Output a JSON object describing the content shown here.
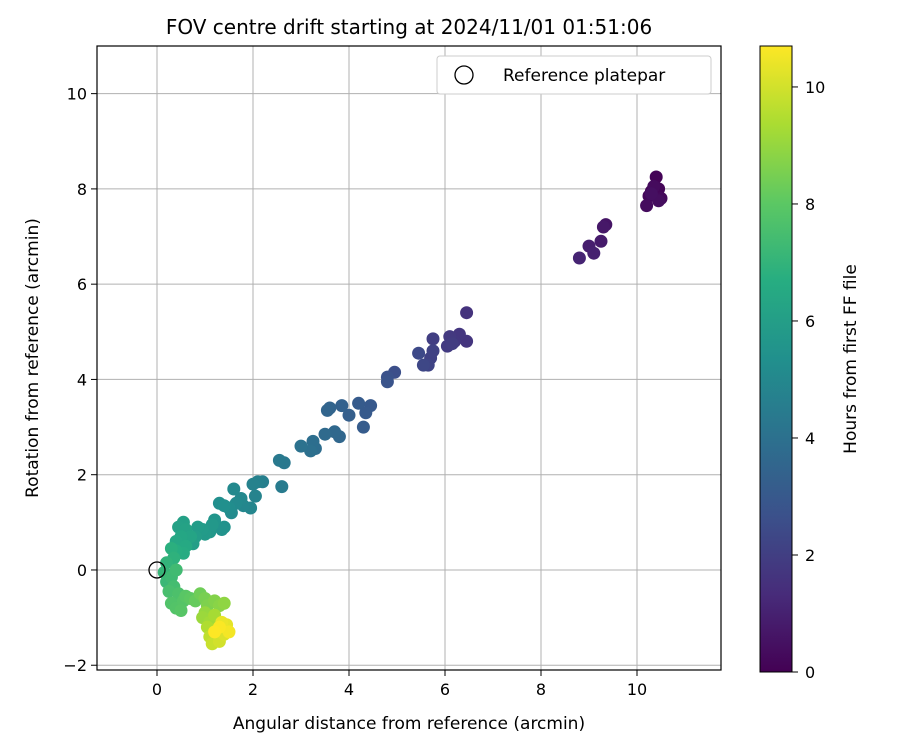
{
  "chart_data": {
    "type": "scatter",
    "title": "FOV centre drift starting at 2024/11/01 01:51:06",
    "xlabel": "Angular distance from reference (arcmin)",
    "ylabel": "Rotation from reference (arcmin)",
    "xlim": [
      -1.25,
      11.75
    ],
    "ylim": [
      -2.1,
      11.0
    ],
    "xticks": [
      0,
      2,
      4,
      6,
      8,
      10
    ],
    "yticks": [
      -2,
      0,
      2,
      4,
      6,
      8,
      10
    ],
    "grid": true,
    "legend": {
      "placement": "top-right",
      "entries": [
        "Reference platepar"
      ]
    },
    "reference_point": {
      "name": "Reference platepar",
      "x": 0.0,
      "y": 0.0
    },
    "colorbar": {
      "label": "Hours from first FF file",
      "range": [
        0,
        10.7
      ],
      "ticks": [
        0,
        2,
        4,
        6,
        8,
        10
      ],
      "colormap": "viridis"
    },
    "points": [
      {
        "x": 10.3,
        "y": 7.95,
        "c": 0.05
      },
      {
        "x": 10.4,
        "y": 8.25,
        "c": 0.1
      },
      {
        "x": 10.45,
        "y": 8.0,
        "c": 0.15
      },
      {
        "x": 10.25,
        "y": 7.85,
        "c": 0.2
      },
      {
        "x": 10.5,
        "y": 7.8,
        "c": 0.25
      },
      {
        "x": 10.35,
        "y": 8.05,
        "c": 0.3
      },
      {
        "x": 10.2,
        "y": 7.65,
        "c": 0.35
      },
      {
        "x": 10.45,
        "y": 7.75,
        "c": 0.4
      },
      {
        "x": 10.3,
        "y": 7.9,
        "c": 0.45
      },
      {
        "x": 9.35,
        "y": 7.25,
        "c": 0.6
      },
      {
        "x": 9.3,
        "y": 7.2,
        "c": 0.7
      },
      {
        "x": 9.25,
        "y": 6.9,
        "c": 0.8
      },
      {
        "x": 9.0,
        "y": 6.8,
        "c": 0.9
      },
      {
        "x": 9.1,
        "y": 6.65,
        "c": 1.0
      },
      {
        "x": 8.8,
        "y": 6.55,
        "c": 1.1
      },
      {
        "x": 6.45,
        "y": 5.4,
        "c": 1.6
      },
      {
        "x": 6.45,
        "y": 4.8,
        "c": 1.65
      },
      {
        "x": 6.3,
        "y": 4.95,
        "c": 1.7
      },
      {
        "x": 6.2,
        "y": 4.8,
        "c": 1.75
      },
      {
        "x": 6.1,
        "y": 4.9,
        "c": 1.8
      },
      {
        "x": 6.05,
        "y": 4.7,
        "c": 1.85
      },
      {
        "x": 6.15,
        "y": 4.75,
        "c": 1.9
      },
      {
        "x": 5.75,
        "y": 4.85,
        "c": 2.0
      },
      {
        "x": 5.7,
        "y": 4.45,
        "c": 2.1
      },
      {
        "x": 5.75,
        "y": 4.6,
        "c": 2.15
      },
      {
        "x": 5.65,
        "y": 4.3,
        "c": 2.2
      },
      {
        "x": 5.55,
        "y": 4.3,
        "c": 2.3
      },
      {
        "x": 5.45,
        "y": 4.55,
        "c": 2.4
      },
      {
        "x": 4.95,
        "y": 4.15,
        "c": 2.6
      },
      {
        "x": 4.8,
        "y": 4.05,
        "c": 2.7
      },
      {
        "x": 4.8,
        "y": 3.95,
        "c": 2.8
      },
      {
        "x": 4.45,
        "y": 3.45,
        "c": 3.0
      },
      {
        "x": 4.35,
        "y": 3.3,
        "c": 3.05
      },
      {
        "x": 4.2,
        "y": 3.5,
        "c": 3.1
      },
      {
        "x": 4.3,
        "y": 3.0,
        "c": 3.15
      },
      {
        "x": 4.0,
        "y": 3.25,
        "c": 3.25
      },
      {
        "x": 3.85,
        "y": 3.45,
        "c": 3.35
      },
      {
        "x": 3.6,
        "y": 3.4,
        "c": 3.45
      },
      {
        "x": 3.55,
        "y": 3.35,
        "c": 3.5
      },
      {
        "x": 3.8,
        "y": 2.8,
        "c": 3.6
      },
      {
        "x": 3.7,
        "y": 2.9,
        "c": 3.65
      },
      {
        "x": 3.5,
        "y": 2.85,
        "c": 3.7
      },
      {
        "x": 3.3,
        "y": 2.55,
        "c": 3.85
      },
      {
        "x": 3.25,
        "y": 2.7,
        "c": 3.9
      },
      {
        "x": 3.2,
        "y": 2.5,
        "c": 3.95
      },
      {
        "x": 3.0,
        "y": 2.6,
        "c": 4.05
      },
      {
        "x": 2.65,
        "y": 2.25,
        "c": 4.3
      },
      {
        "x": 2.55,
        "y": 2.3,
        "c": 4.35
      },
      {
        "x": 2.6,
        "y": 1.75,
        "c": 4.45
      },
      {
        "x": 2.2,
        "y": 1.85,
        "c": 4.6
      },
      {
        "x": 2.1,
        "y": 1.85,
        "c": 4.7
      },
      {
        "x": 2.0,
        "y": 1.8,
        "c": 4.75
      },
      {
        "x": 2.05,
        "y": 1.55,
        "c": 4.8
      },
      {
        "x": 1.95,
        "y": 1.3,
        "c": 4.9
      },
      {
        "x": 1.8,
        "y": 1.35,
        "c": 4.95
      },
      {
        "x": 1.75,
        "y": 1.5,
        "c": 5.0
      },
      {
        "x": 1.6,
        "y": 1.7,
        "c": 5.05
      },
      {
        "x": 1.65,
        "y": 1.4,
        "c": 5.1
      },
      {
        "x": 1.55,
        "y": 1.2,
        "c": 5.15
      },
      {
        "x": 1.5,
        "y": 1.3,
        "c": 5.2
      },
      {
        "x": 1.3,
        "y": 1.4,
        "c": 5.3
      },
      {
        "x": 1.4,
        "y": 1.35,
        "c": 5.35
      },
      {
        "x": 1.4,
        "y": 0.9,
        "c": 5.45
      },
      {
        "x": 1.35,
        "y": 0.85,
        "c": 5.5
      },
      {
        "x": 1.2,
        "y": 1.05,
        "c": 5.6
      },
      {
        "x": 1.1,
        "y": 0.8,
        "c": 5.65
      },
      {
        "x": 1.15,
        "y": 0.95,
        "c": 5.7
      },
      {
        "x": 1.0,
        "y": 0.75,
        "c": 5.8
      },
      {
        "x": 0.95,
        "y": 0.85,
        "c": 5.85
      },
      {
        "x": 0.85,
        "y": 0.9,
        "c": 5.9
      },
      {
        "x": 0.8,
        "y": 0.7,
        "c": 5.95
      },
      {
        "x": 0.75,
        "y": 0.55,
        "c": 6.0
      },
      {
        "x": 0.55,
        "y": 1.0,
        "c": 6.1
      },
      {
        "x": 0.45,
        "y": 0.9,
        "c": 6.15
      },
      {
        "x": 0.6,
        "y": 0.85,
        "c": 6.2
      },
      {
        "x": 0.7,
        "y": 0.7,
        "c": 6.25
      },
      {
        "x": 0.5,
        "y": 0.7,
        "c": 6.35
      },
      {
        "x": 0.4,
        "y": 0.6,
        "c": 6.4
      },
      {
        "x": 0.6,
        "y": 0.5,
        "c": 6.5
      },
      {
        "x": 0.55,
        "y": 0.35,
        "c": 6.6
      },
      {
        "x": 0.4,
        "y": 0.4,
        "c": 6.7
      },
      {
        "x": 0.3,
        "y": 0.45,
        "c": 6.8
      },
      {
        "x": 0.35,
        "y": 0.25,
        "c": 6.9
      },
      {
        "x": 0.2,
        "y": 0.15,
        "c": 7.0
      },
      {
        "x": 0.15,
        "y": -0.05,
        "c": 7.1
      },
      {
        "x": 0.2,
        "y": -0.25,
        "c": 7.2
      },
      {
        "x": 0.3,
        "y": -0.15,
        "c": 7.3
      },
      {
        "x": 0.4,
        "y": 0.0,
        "c": 7.35
      },
      {
        "x": 0.35,
        "y": -0.35,
        "c": 7.45
      },
      {
        "x": 0.25,
        "y": -0.45,
        "c": 7.55
      },
      {
        "x": 0.45,
        "y": -0.5,
        "c": 7.65
      },
      {
        "x": 0.3,
        "y": -0.7,
        "c": 7.75
      },
      {
        "x": 0.4,
        "y": -0.8,
        "c": 7.8
      },
      {
        "x": 0.55,
        "y": -0.65,
        "c": 7.85
      },
      {
        "x": 0.5,
        "y": -0.85,
        "c": 7.9
      },
      {
        "x": 0.6,
        "y": -0.55,
        "c": 7.95
      },
      {
        "x": 0.7,
        "y": -0.6,
        "c": 8.05
      },
      {
        "x": 0.8,
        "y": -0.65,
        "c": 8.2
      },
      {
        "x": 0.9,
        "y": -0.5,
        "c": 8.35
      },
      {
        "x": 1.0,
        "y": -0.6,
        "c": 8.5
      },
      {
        "x": 1.05,
        "y": -0.75,
        "c": 8.6
      },
      {
        "x": 1.2,
        "y": -0.65,
        "c": 8.7
      },
      {
        "x": 1.3,
        "y": -0.75,
        "c": 8.8
      },
      {
        "x": 1.4,
        "y": -0.7,
        "c": 8.9
      },
      {
        "x": 1.0,
        "y": -0.9,
        "c": 9.0
      },
      {
        "x": 0.95,
        "y": -1.0,
        "c": 9.1
      },
      {
        "x": 1.1,
        "y": -1.1,
        "c": 9.2
      },
      {
        "x": 1.2,
        "y": -0.95,
        "c": 9.3
      },
      {
        "x": 1.05,
        "y": -1.2,
        "c": 9.45
      },
      {
        "x": 1.25,
        "y": -1.3,
        "c": 9.6
      },
      {
        "x": 1.1,
        "y": -1.4,
        "c": 9.7
      },
      {
        "x": 1.15,
        "y": -1.55,
        "c": 9.85
      },
      {
        "x": 1.3,
        "y": -1.5,
        "c": 10.0
      },
      {
        "x": 1.4,
        "y": -1.35,
        "c": 10.15
      },
      {
        "x": 1.45,
        "y": -1.15,
        "c": 10.3
      },
      {
        "x": 1.35,
        "y": -1.1,
        "c": 10.4
      },
      {
        "x": 1.5,
        "y": -1.3,
        "c": 10.55
      },
      {
        "x": 1.3,
        "y": -1.2,
        "c": 10.65
      },
      {
        "x": 1.2,
        "y": -1.3,
        "c": 10.7
      }
    ]
  }
}
